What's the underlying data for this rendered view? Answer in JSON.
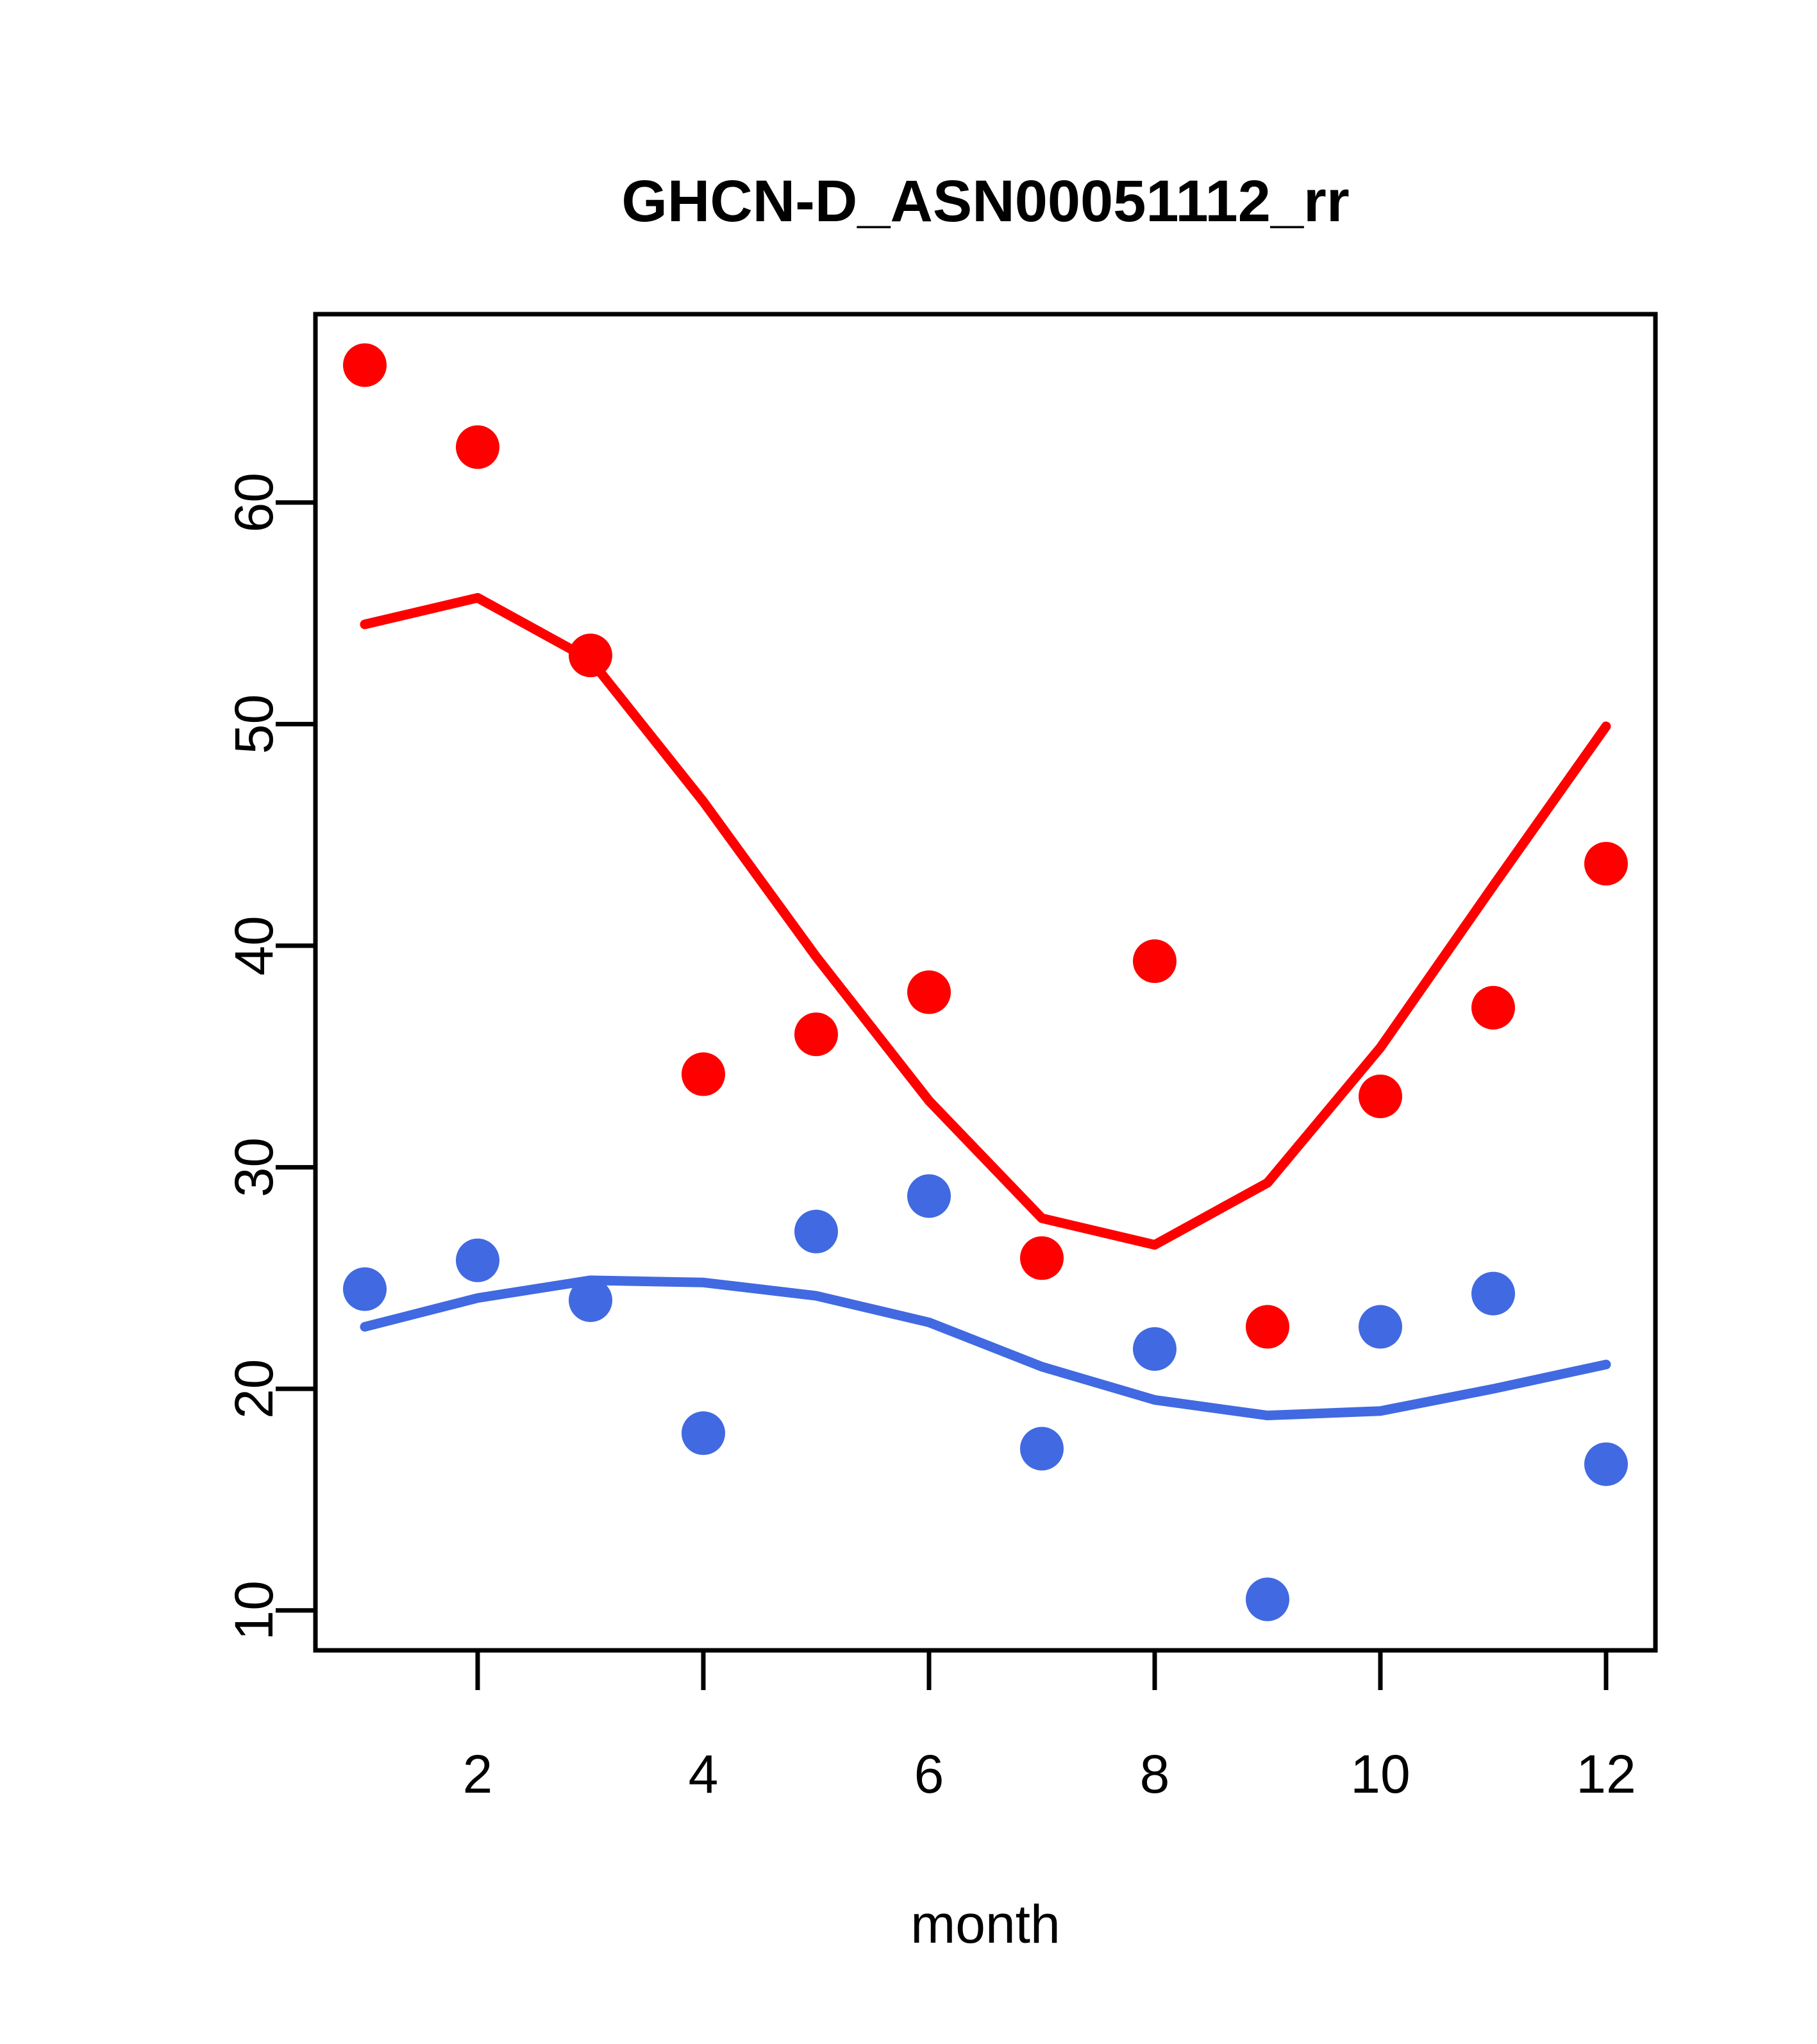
{
  "chart_data": {
    "type": "scatter",
    "title": "GHCN-D_ASN00051112_rr",
    "xlabel": "month",
    "ylabel": "",
    "x": [
      1,
      2,
      3,
      4,
      5,
      6,
      7,
      8,
      9,
      10,
      11,
      12
    ],
    "series": [
      {
        "name": "red-points",
        "kind": "points",
        "color": "#ff0000",
        "values": [
          66.2,
          62.5,
          53.1,
          34.2,
          36.0,
          37.9,
          25.9,
          39.3,
          22.8,
          33.2,
          37.2,
          43.7
        ]
      },
      {
        "name": "blue-points",
        "kind": "points",
        "color": "#4169e1",
        "values": [
          24.5,
          25.8,
          24.0,
          18.0,
          27.1,
          28.7,
          17.3,
          21.8,
          10.5,
          22.8,
          24.3,
          16.6
        ]
      },
      {
        "name": "red-trend-line",
        "kind": "line",
        "color": "#ff0000",
        "values": [
          54.5,
          55.7,
          52.9,
          46.5,
          39.5,
          33.0,
          27.7,
          26.5,
          29.3,
          35.4,
          42.7,
          49.9
        ]
      },
      {
        "name": "blue-trend-line",
        "kind": "line",
        "color": "#4169e1",
        "values": [
          22.8,
          24.1,
          24.9,
          24.8,
          24.2,
          23.0,
          21.0,
          19.5,
          18.8,
          19.0,
          20.0,
          21.1
        ]
      }
    ],
    "xticks": [
      2,
      4,
      6,
      8,
      10,
      12
    ],
    "yticks": [
      10,
      20,
      30,
      40,
      50,
      60
    ],
    "xlim": [
      0.5625,
      12.4375
    ],
    "ylim": [
      8.2,
      68.5
    ],
    "grid": false,
    "legend": "none",
    "axis_color": "#000000",
    "background_color": "#ffffff"
  }
}
